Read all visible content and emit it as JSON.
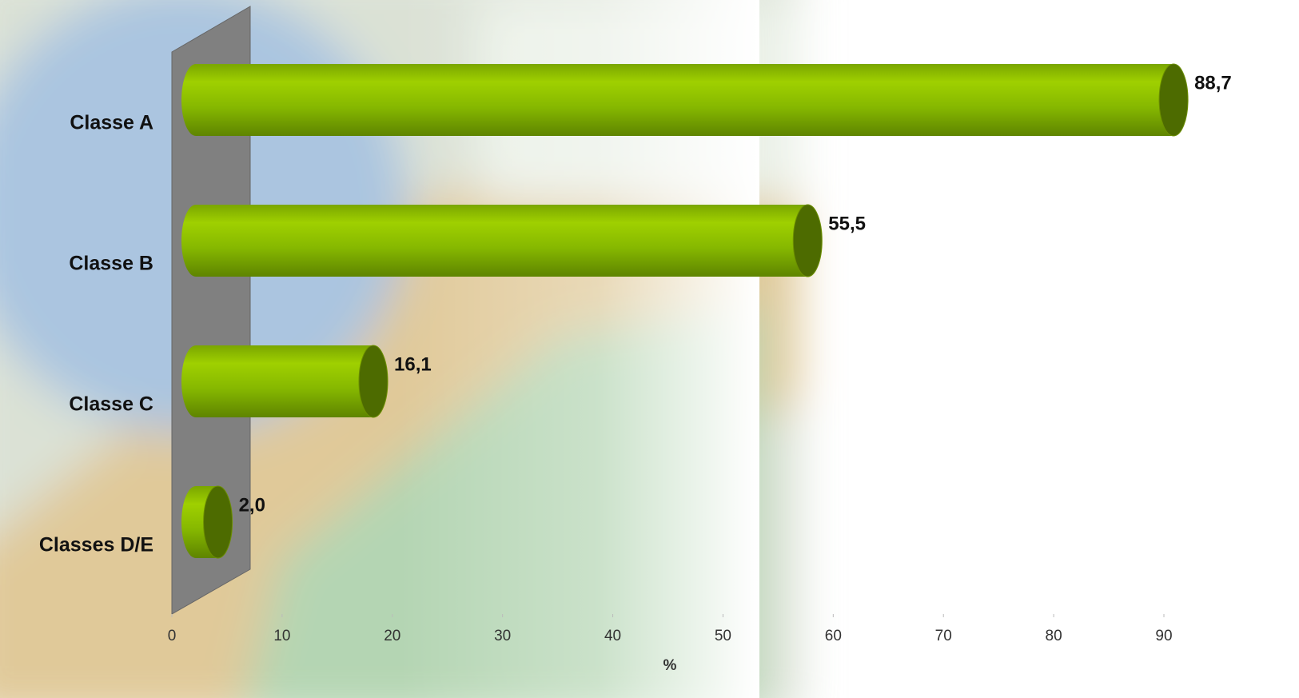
{
  "chart_data": {
    "type": "bar",
    "orientation": "horizontal",
    "categories": [
      "Classe A",
      "Classe B",
      "Classe C",
      "Classes D/E"
    ],
    "values": [
      88.7,
      55.5,
      16.1,
      2.0
    ],
    "value_labels": [
      "88,7",
      "55,5",
      "16,1",
      "2,0"
    ],
    "color": "#8cbf00",
    "xlabel": "%",
    "xlim": [
      0,
      90
    ],
    "xticks": [
      0,
      10,
      20,
      30,
      40,
      50,
      60,
      70,
      80,
      90
    ],
    "grid": false
  }
}
